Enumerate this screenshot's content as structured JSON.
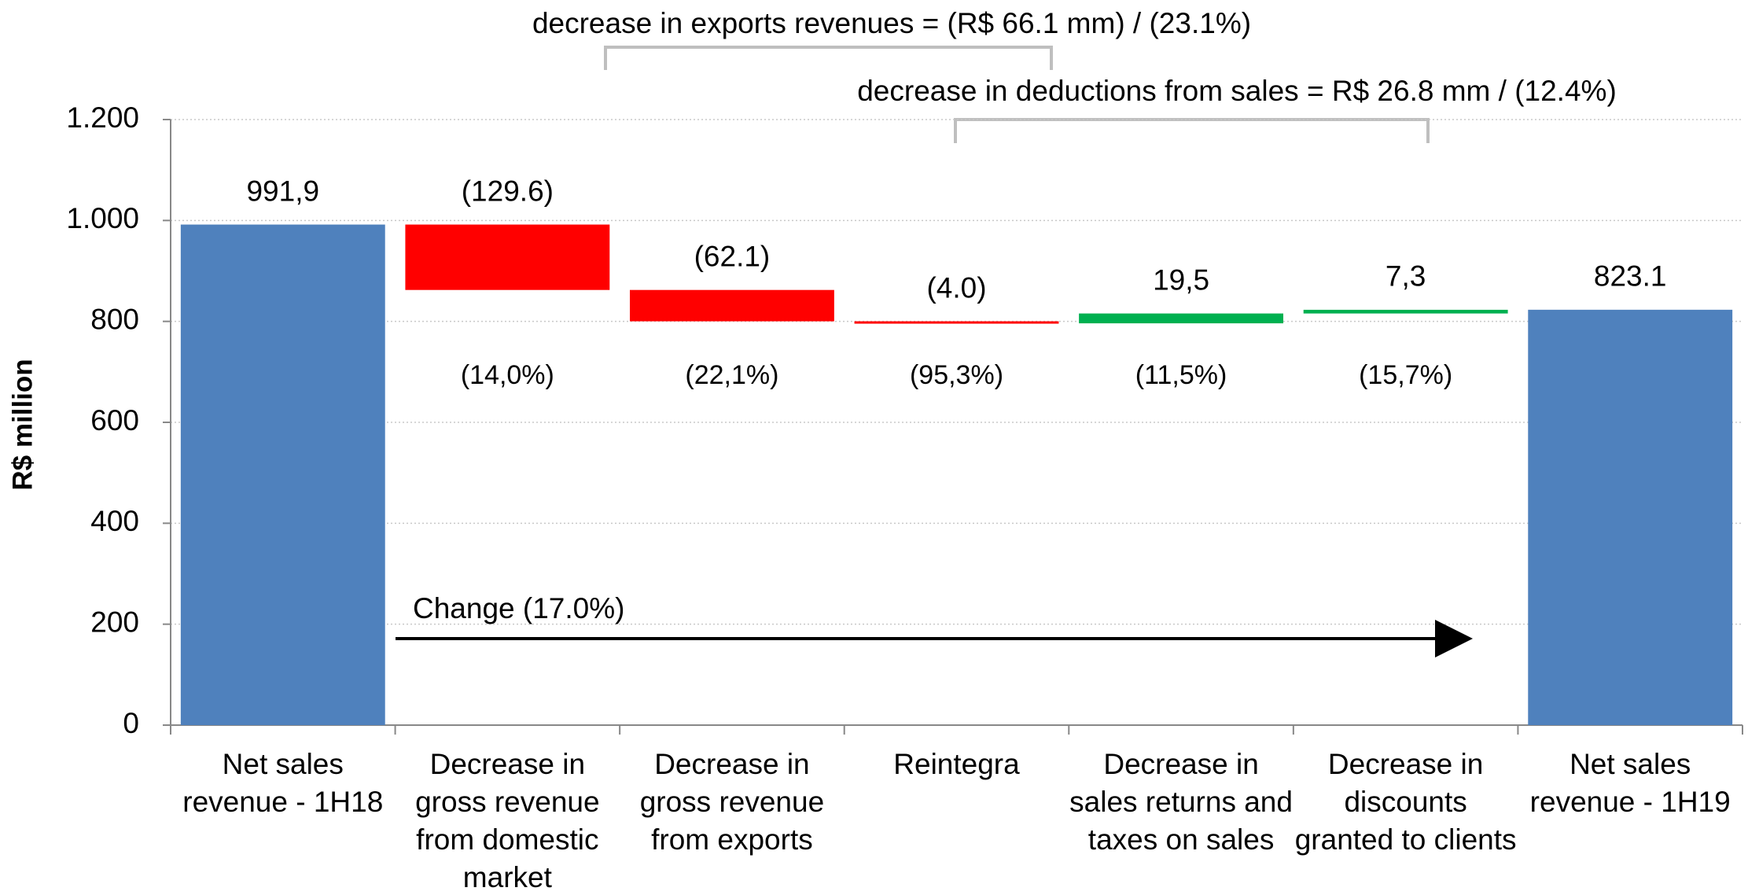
{
  "chart_data": {
    "type": "waterfall",
    "y_axis_label": "R$ million",
    "categories": [
      "Net sales revenue - 1H18",
      "Decrease in gross revenue from domestic market",
      "Decrease in gross revenue from exports",
      "Reintegra",
      "Decrease in sales returns and taxes on sales",
      "Decrease in discounts granted to clients",
      "Net sales revenue - 1H19"
    ],
    "values": [
      991.9,
      -129.6,
      -62.1,
      -4.0,
      19.5,
      7.3,
      823.1
    ],
    "value_labels": [
      "991,9",
      "(129.6)",
      "(62.1)",
      "(4.0)",
      "19,5",
      "7,3",
      "823.1"
    ],
    "percent_labels": [
      null,
      "(14,0%)",
      "(22,1%)",
      "(95,3%)",
      "(11,5%)",
      "(15,7%)",
      null
    ],
    "is_total": [
      true,
      false,
      false,
      false,
      false,
      false,
      true
    ],
    "colors": {
      "total": "#4f81bd",
      "negative": "#ff0000",
      "positive": "#00b050"
    },
    "ylim": [
      0,
      1200
    ],
    "yticks": [
      0,
      200,
      400,
      600,
      800,
      {
        "value": 1000,
        "label": "1.000"
      },
      {
        "value": 1200,
        "label": "1.200"
      }
    ],
    "grid": true,
    "annotations": {
      "exports": "decrease in exports revenues = (R$ 66.1 mm) / (23.1%)",
      "deductions": "decrease in deductions from sales = R$ 26.8 mm / (12.4%)",
      "change": "Change (17.0%)"
    }
  }
}
